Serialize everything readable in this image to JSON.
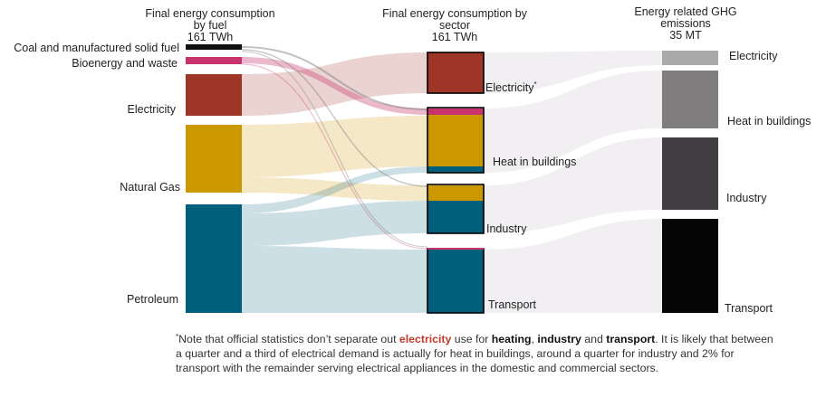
{
  "columns": {
    "fuel": {
      "title_lines": [
        "Final energy consumption",
        "by fuel",
        "161 TWh"
      ]
    },
    "sector": {
      "title_lines": [
        "Final energy consumption by",
        "sector",
        "161 TWh"
      ]
    },
    "emissions": {
      "title_lines": [
        "Energy related GHG",
        "emissions",
        "35 MT"
      ]
    }
  },
  "fuels": [
    {
      "id": "coal",
      "label": "Coal and manufactured solid fuel",
      "color": "#111111"
    },
    {
      "id": "bio",
      "label": "Bioenergy and waste",
      "color": "#c8336e"
    },
    {
      "id": "elec",
      "label": "Electricity",
      "color": "#9e3527"
    },
    {
      "id": "gas",
      "label": "Natural Gas",
      "color": "#cc9800"
    },
    {
      "id": "pet",
      "label": "Petroleum",
      "color": "#005f7a"
    }
  ],
  "sectors": [
    {
      "id": "s_elec",
      "label": "Electricity",
      "label_mark": "*"
    },
    {
      "id": "s_heat",
      "label": "Heat in buildings",
      "label_mark": ""
    },
    {
      "id": "s_ind",
      "label": "Industry",
      "label_mark": ""
    },
    {
      "id": "s_trans",
      "label": "Transport",
      "label_mark": ""
    }
  ],
  "emissions": [
    {
      "id": "e_elec",
      "label": "Electricity",
      "color": "#a9a9a9"
    },
    {
      "id": "e_heat",
      "label": "Heat in buildings",
      "color": "#7f7d7e"
    },
    {
      "id": "e_ind",
      "label": "Industry",
      "color": "#403e40"
    },
    {
      "id": "e_trans",
      "label": "Transport",
      "color": "#050505"
    }
  ],
  "note": {
    "marker": "*",
    "part1": "Note that official statistics don’t separate out ",
    "highlight": "electricity",
    "part2": "  use for ",
    "heating": "heating",
    "comma": ", ",
    "industry": "industry",
    "and": " and ",
    "transport": "transport",
    "part3": ". It is likely that between a quarter and a third of electrical demand is actually for heat in buildings, around a quarter for industry and 2% for transport with the remainder serving electrical appliances in the domestic and commercial sectors."
  }
}
